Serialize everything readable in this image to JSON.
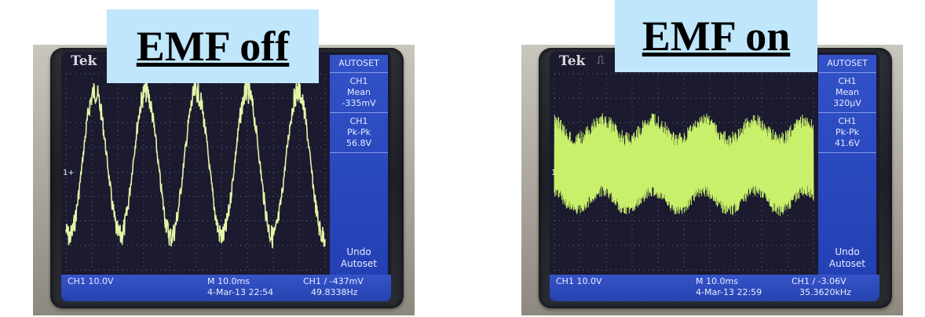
{
  "panels": [
    {
      "caption": "EMF off",
      "brand": "Tek",
      "menu_title": "AUTOSET",
      "mean": {
        "ch": "CH1",
        "label": "Mean",
        "value": "-335mV"
      },
      "pkpk": {
        "ch": "CH1",
        "label": "Pk-Pk",
        "value": "56.8V"
      },
      "undo": [
        "Undo",
        "Autoset"
      ],
      "bottom": {
        "channel_scale": "CH1  10.0V",
        "timebase": "M 10.0ms",
        "datetime": "4-Mar-13 22:54",
        "trigger": "CH1 / -437mV",
        "frequency": "49.8338Hz"
      },
      "ground_marker": "1+",
      "trace_color": "#e4f5a8"
    },
    {
      "caption": "EMF on",
      "brand": "Tek",
      "menu_title": "AUTOSET",
      "mean": {
        "ch": "CH1",
        "label": "Mean",
        "value": "320µV"
      },
      "pkpk": {
        "ch": "CH1",
        "label": "Pk-Pk",
        "value": "41.6V"
      },
      "undo": [
        "Undo",
        "Autoset"
      ],
      "bottom": {
        "channel_scale": "CH1  10.0V",
        "timebase": "M 10.0ms",
        "datetime": "4-Mar-13 22:59",
        "trigger": "CH1 / -3.06V",
        "frequency": "35.3620kHz"
      },
      "ground_marker": "1+",
      "trace_color": "#c8f06a"
    }
  ]
}
